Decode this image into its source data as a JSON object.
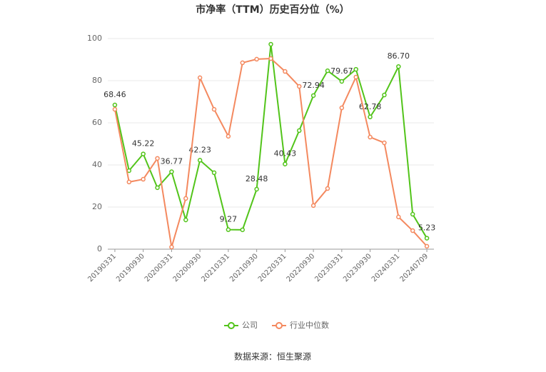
{
  "chart_data": {
    "type": "line",
    "title": "市净率（TTM）历史百分位（%）",
    "source": "数据来源：恒生聚源",
    "categories": [
      "20190331",
      null,
      "20190930",
      null,
      "20200331",
      null,
      "20200930",
      null,
      "20210331",
      null,
      "20210930",
      null,
      "20220331",
      null,
      "20220930",
      null,
      "20230331",
      null,
      "20230930",
      null,
      "20240331",
      null,
      "20240709"
    ],
    "series": [
      {
        "name": "公司",
        "color": "#52c41a",
        "values": [
          68.46,
          37.3,
          45.22,
          29.2,
          36.77,
          13.9,
          42.23,
          36.3,
          9.27,
          9.2,
          28.48,
          97.3,
          40.43,
          56.3,
          72.94,
          84.7,
          79.67,
          85.4,
          62.78,
          73.2,
          86.7,
          16.6,
          5.23
        ],
        "value_labels": [
          "68.46",
          null,
          "45.22",
          null,
          "36.77",
          null,
          "42.23",
          null,
          "9.27",
          null,
          "28.48",
          null,
          "40.43",
          null,
          "72.94",
          null,
          "79.67",
          null,
          "62.78",
          null,
          "86.70",
          null,
          "5.23"
        ]
      },
      {
        "name": "行业中位数",
        "color": "#f4895f",
        "values": [
          66.4,
          31.9,
          33.2,
          43.1,
          1.0,
          24.1,
          81.4,
          66.4,
          53.6,
          88.5,
          90.2,
          90.5,
          84.4,
          77.3,
          20.7,
          28.8,
          67.1,
          81.7,
          53.2,
          50.5,
          15.3,
          8.8,
          1.4
        ]
      }
    ],
    "ylim": [
      0,
      100
    ],
    "yticks": [
      0,
      20,
      40,
      60,
      80,
      100
    ],
    "grid": true
  }
}
